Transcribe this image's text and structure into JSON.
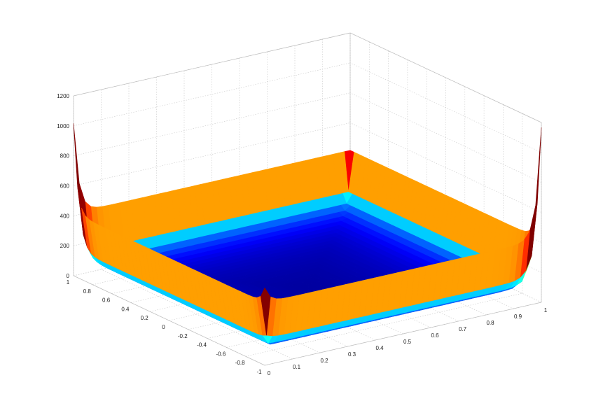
{
  "chart_data": {
    "type": "surface",
    "title": "",
    "xlabel": "",
    "ylabel": "",
    "zlabel": "",
    "grid": true,
    "colormap": "jet",
    "x_ticks": [
      "-1",
      "-0.8",
      "-0.6",
      "-0.4",
      "-0.2",
      "0",
      "0.2",
      "0.4",
      "0.6",
      "0.8",
      "1"
    ],
    "y_ticks": [
      "0",
      "0.1",
      "0.2",
      "0.3",
      "0.4",
      "0.5",
      "0.6",
      "0.7",
      "0.8",
      "0.9",
      "1"
    ],
    "z_ticks": [
      "0",
      "200",
      "400",
      "600",
      "800",
      "1000",
      "1200"
    ],
    "xlim": [
      -1,
      1
    ],
    "ylim": [
      0,
      1
    ],
    "zlim": [
      0,
      1200
    ],
    "surface": {
      "wall_height": 400,
      "peaks": [
        {
          "x": 1,
          "y": 0,
          "z": 1000
        },
        {
          "x": -1,
          "y": 1,
          "z": 1150
        },
        {
          "x": -1,
          "y": 0,
          "z": 500
        }
      ]
    }
  }
}
